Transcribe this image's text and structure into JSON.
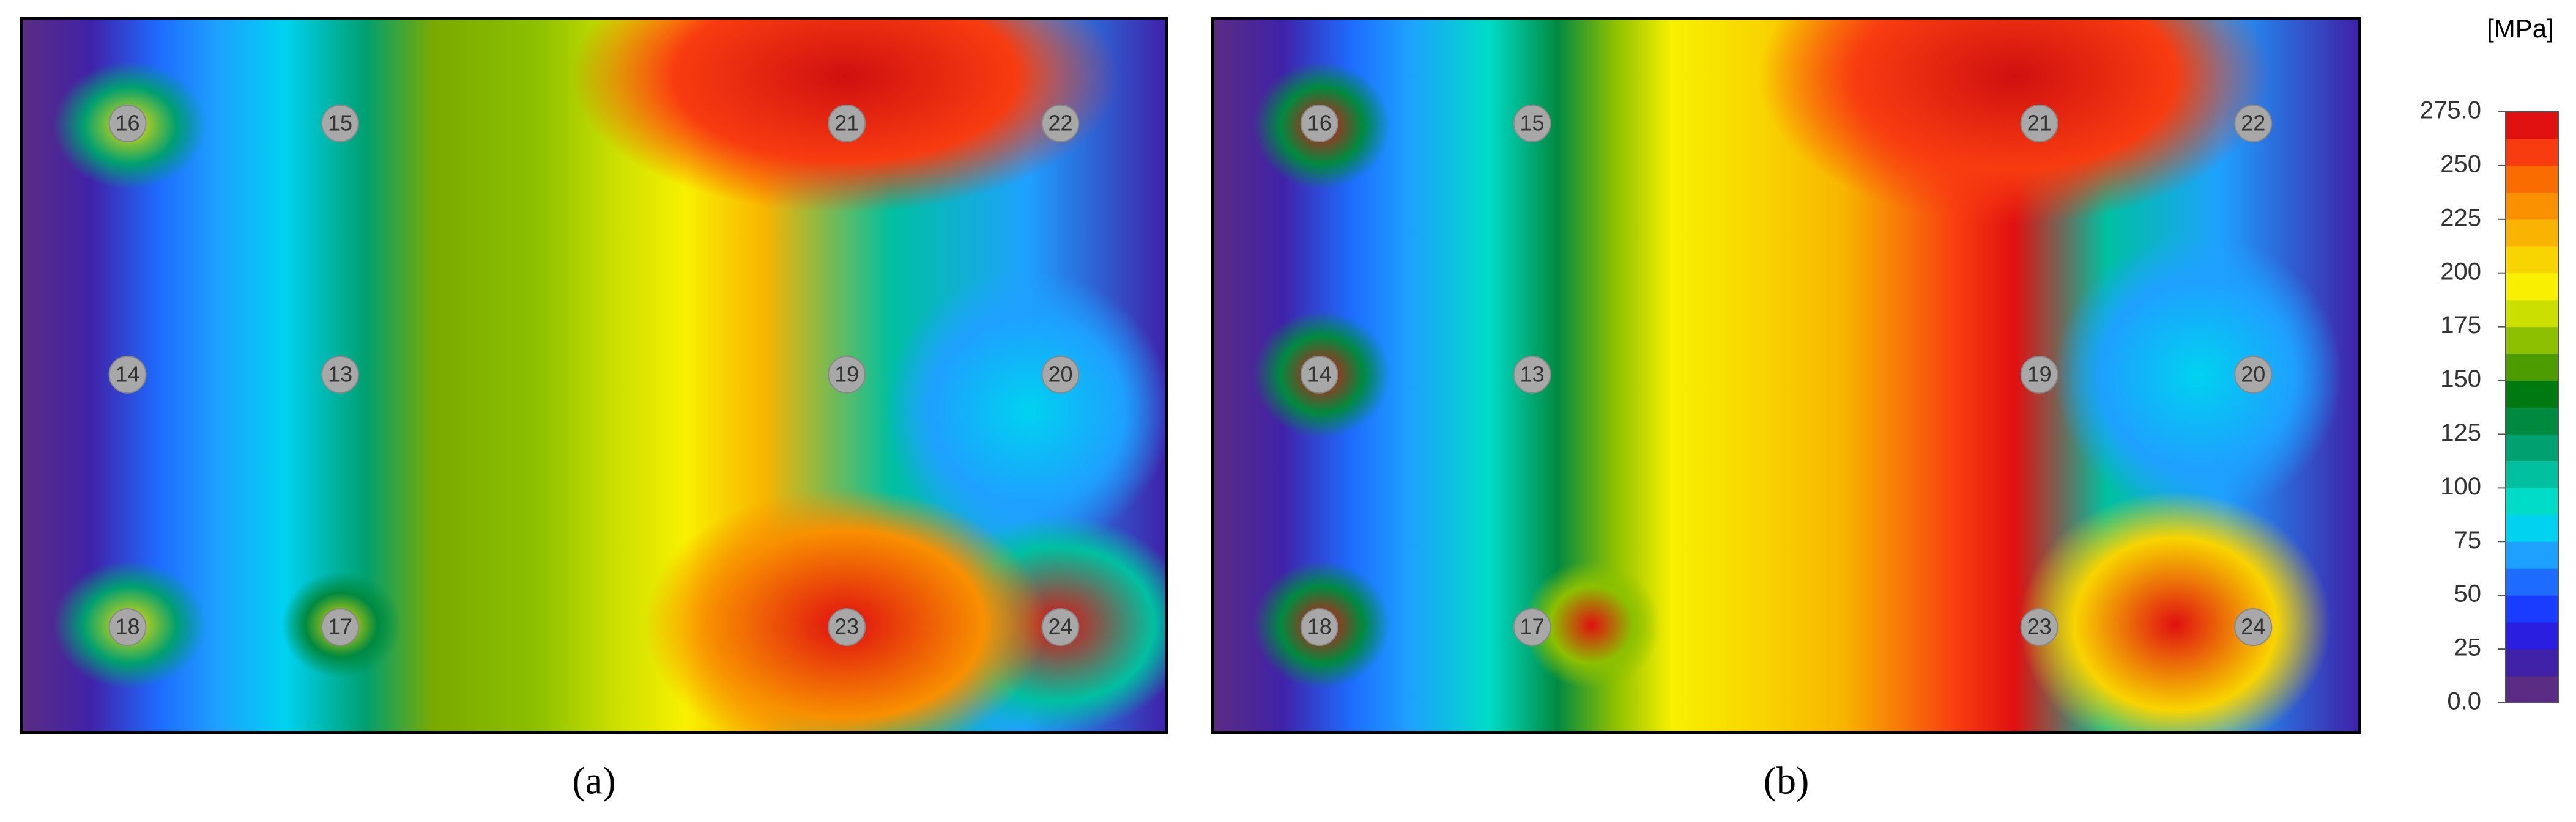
{
  "panels": [
    {
      "caption": "(a)",
      "nodes": [
        "16",
        "15",
        "21",
        "22",
        "14",
        "13",
        "19",
        "20",
        "18",
        "17",
        "23",
        "24"
      ]
    },
    {
      "caption": "(b)",
      "nodes": [
        "16",
        "15",
        "21",
        "22",
        "14",
        "13",
        "19",
        "20",
        "18",
        "17",
        "23",
        "24"
      ]
    }
  ],
  "colorbar": {
    "unit": "[MPa]",
    "lim": [
      0,
      275
    ],
    "ticks": [
      {
        "value": 0,
        "label": "0.0"
      },
      25,
      50,
      75,
      100,
      125,
      150,
      175,
      200,
      225,
      250,
      {
        "value": 275,
        "label": "275.0"
      }
    ],
    "colors": [
      "#5b2c83",
      "#3f22a8",
      "#2a1ee0",
      "#1a3cff",
      "#1e6cff",
      "#1ea0ff",
      "#00d2f0",
      "#00dcc8",
      "#00c0a0",
      "#00a070",
      "#008a40",
      "#007a10",
      "#4c9c00",
      "#8cc000",
      "#cce000",
      "#f8f000",
      "#f8d400",
      "#f8b400",
      "#f89000",
      "#f86c00",
      "#f83c10",
      "#e01010"
    ]
  }
}
